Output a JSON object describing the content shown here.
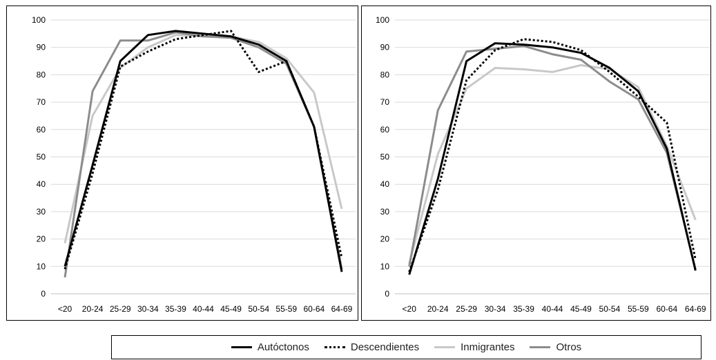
{
  "chart_data": [
    {
      "type": "line",
      "categories": [
        "<20",
        "20-24",
        "25-29",
        "30-34",
        "35-39",
        "40-44",
        "45-49",
        "50-54",
        "55-59",
        "60-64",
        "64-69"
      ],
      "ylim": [
        0,
        100
      ],
      "yticks": [
        0,
        10,
        20,
        30,
        40,
        50,
        60,
        70,
        80,
        90,
        100
      ],
      "grid": true,
      "series": [
        {
          "name": "Autóctonos",
          "values": [
            10,
            47,
            85,
            94.5,
            96,
            95,
            94,
            91,
            85,
            61,
            8
          ]
        },
        {
          "name": "Descendientes",
          "values": [
            9,
            44,
            83,
            88.5,
            93,
            94.5,
            96,
            81,
            85,
            61,
            13
          ]
        },
        {
          "name": "Inmigrantes",
          "values": [
            18.5,
            65,
            82.5,
            90,
            94.5,
            94,
            94,
            92,
            86,
            73.5,
            31
          ]
        },
        {
          "name": "Otros",
          "values": [
            6,
            74,
            92.5,
            92.5,
            95.5,
            94,
            93.5,
            90,
            84,
            61,
            9
          ]
        }
      ]
    },
    {
      "type": "line",
      "categories": [
        "<20",
        "20-24",
        "25-29",
        "30-34",
        "35-39",
        "40-44",
        "45-49",
        "50-54",
        "55-59",
        "60-64",
        "64-69"
      ],
      "ylim": [
        0,
        100
      ],
      "yticks": [
        0,
        10,
        20,
        30,
        40,
        50,
        60,
        70,
        80,
        90,
        100
      ],
      "grid": true,
      "series": [
        {
          "name": "Autóctonos",
          "values": [
            7,
            42,
            85,
            91.5,
            91,
            90,
            88,
            82.5,
            74,
            53,
            8.5
          ]
        },
        {
          "name": "Descendientes",
          "values": [
            8,
            38,
            78,
            89,
            93,
            92,
            89,
            81,
            72,
            62.5,
            12.5
          ]
        },
        {
          "name": "Inmigrantes",
          "values": [
            11,
            51,
            75,
            82.5,
            82,
            81,
            83.5,
            82,
            75.5,
            54,
            27
          ]
        },
        {
          "name": "Otros",
          "values": [
            10,
            67,
            88.5,
            89.5,
            90.5,
            87.5,
            85.5,
            77.5,
            71,
            51.5,
            9
          ]
        }
      ]
    }
  ],
  "legend": [
    {
      "label": "Autóctonos",
      "color": "#000000",
      "dash": "solid"
    },
    {
      "label": "Descendientes",
      "color": "#000000",
      "dash": "dotted"
    },
    {
      "label": "Inmigrantes",
      "color": "#c8c8c8",
      "dash": "solid"
    },
    {
      "label": "Otros",
      "color": "#8c8c8c",
      "dash": "solid"
    }
  ]
}
